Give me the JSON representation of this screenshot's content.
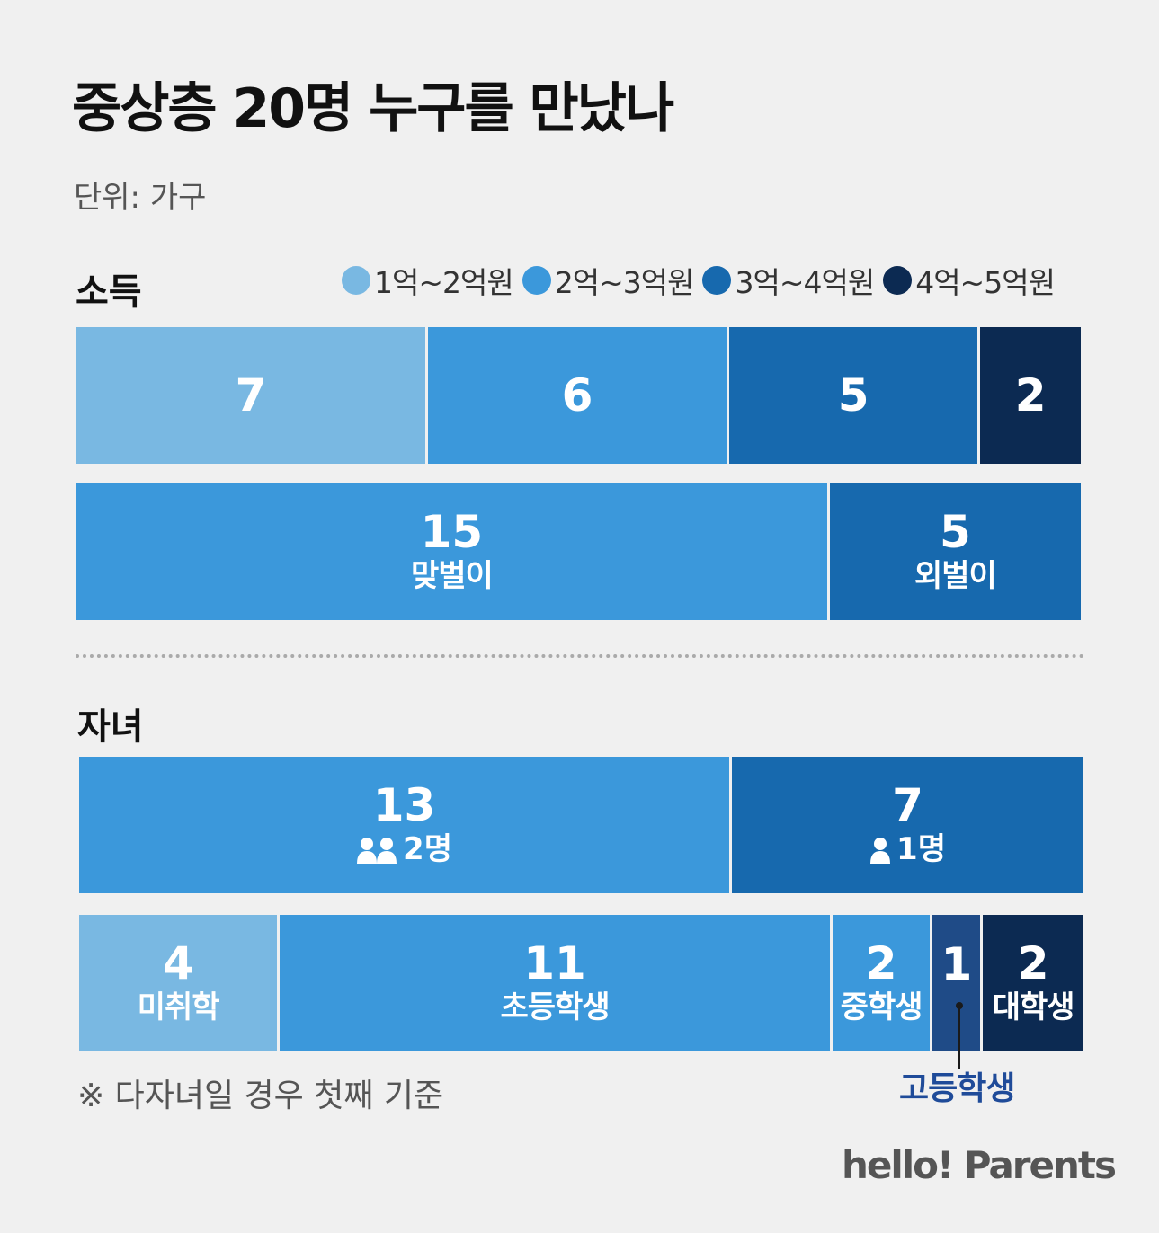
{
  "title": "중상층 20명 누구를 만났나",
  "unit": "단위: 가구",
  "note": "※ 다자녀일 경우 첫째 기준",
  "brand": "hello! Parents",
  "colors": {
    "light": "#79b8e2",
    "medium": "#3b98db",
    "dark": "#1769ae",
    "darkest": "#0c2a52",
    "high_school": "#1f4b87",
    "callout_text": "#1f4b99"
  },
  "icons": {
    "two_people": "two-people-icon",
    "one_person": "person-icon"
  },
  "chart_data": [
    {
      "type": "bar",
      "section": "소득",
      "stacked": true,
      "orientation": "horizontal",
      "legend_placement": "top-right",
      "categories": [
        "1억~2억원",
        "2억~3억원",
        "3억~4억원",
        "4억~5억원"
      ],
      "values": [
        7,
        6,
        5,
        2
      ],
      "colors": [
        "#79b8e2",
        "#3b98db",
        "#1769ae",
        "#0c2a52"
      ]
    },
    {
      "type": "bar",
      "section": "소득",
      "stacked": true,
      "orientation": "horizontal",
      "categories": [
        "맞벌이",
        "외벌이"
      ],
      "values": [
        15,
        5
      ],
      "colors": [
        "#3b98db",
        "#1769ae"
      ]
    },
    {
      "type": "bar",
      "section": "자녀",
      "stacked": true,
      "orientation": "horizontal",
      "categories": [
        "2명",
        "1명"
      ],
      "values": [
        13,
        7
      ],
      "colors": [
        "#3b98db",
        "#1769ae"
      ]
    },
    {
      "type": "bar",
      "section": "자녀",
      "stacked": true,
      "orientation": "horizontal",
      "categories": [
        "미취학",
        "초등학생",
        "중학생",
        "고등학생",
        "대학생"
      ],
      "values": [
        4,
        11,
        2,
        1,
        2
      ],
      "colors": [
        "#79b8e2",
        "#3b98db",
        "#3b98db",
        "#1f4b87",
        "#0c2a52"
      ],
      "inline_labels": [
        "미취학",
        "초등학생",
        "중학생",
        "",
        "대학생"
      ],
      "callout": "고등학생"
    }
  ]
}
